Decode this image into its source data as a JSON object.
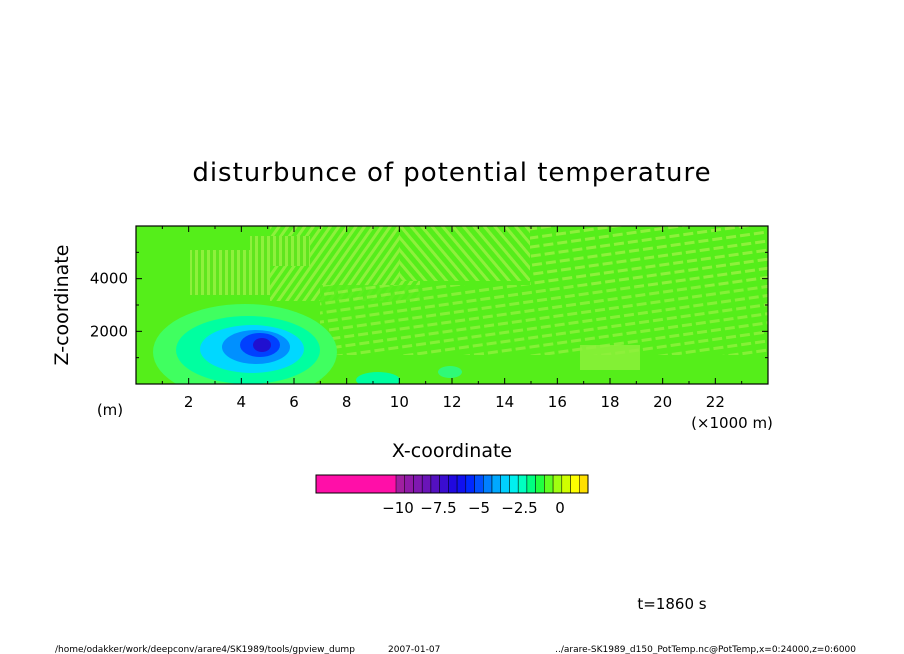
{
  "chart_data": {
    "type": "heatmap",
    "title": "disturbunce of potential temperature",
    "xlabel": "X-coordinate",
    "ylabel": "Z-coordinate",
    "x_unit_label": "(×1000 m)",
    "y_unit_label": "(m)",
    "x_ticks": [
      "2",
      "4",
      "6",
      "8",
      "10",
      "12",
      "14",
      "16",
      "18",
      "20",
      "22"
    ],
    "x_tick_values": [
      2,
      4,
      6,
      8,
      10,
      12,
      14,
      16,
      18,
      20,
      22
    ],
    "xlim": [
      0,
      24
    ],
    "y_ticks": [
      "2000",
      "4000"
    ],
    "y_tick_values": [
      2000,
      4000
    ],
    "ylim": [
      0,
      6000
    ],
    "time_label": "t=1860 s",
    "colorbar": {
      "range": [
        -10,
        0
      ],
      "tick_labels": [
        "−10",
        "−7.5",
        "−5",
        "−2.5",
        "0"
      ],
      "tick_values": [
        -10,
        -7.5,
        -5,
        -2.5,
        0
      ],
      "underflow_color": "#ff0fa8",
      "level_colors": [
        "#a01fa0",
        "#901aa8",
        "#7f18b0",
        "#6a14b8",
        "#5410c0",
        "#3a0cd0",
        "#2008e0",
        "#1010f0",
        "#0028ff",
        "#0050ff",
        "#0080ff",
        "#00a8ff",
        "#00d0ff",
        "#00f0f0",
        "#00ffc0",
        "#00ff80",
        "#20ff40",
        "#60ff20",
        "#a0ff10",
        "#d0ff00",
        "#ffff00",
        "#ffe000"
      ]
    },
    "anomaly_cold_core": {
      "x_center": 4.8,
      "z_center": 1400,
      "min_value": -6
    }
  },
  "footer": {
    "left_path": "/home/odakker/work/deepconv/arare4/SK1989/tools/gpview_dump",
    "date": "2007-01-07",
    "right_source": "../arare-SK1989_d150_PotTemp.nc@PotTemp,x=0:24000,z=0:6000"
  },
  "colors": {
    "background_field": "#55ee1a",
    "stripe_light": "#8cf23a",
    "stripe_dark": "#3fdd12"
  }
}
